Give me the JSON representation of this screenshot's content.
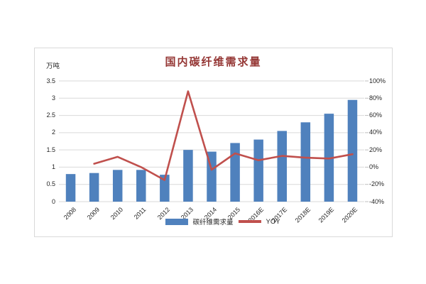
{
  "page": {
    "background": "#ffffff"
  },
  "chart_data": {
    "type": "bar",
    "combo_with_line": true,
    "title": "国内碳纤维需求量",
    "unit_label": "万吨",
    "categories": [
      "2008",
      "2009",
      "2010",
      "2011",
      "2012",
      "2013",
      "2014",
      "2015",
      "2016E",
      "2017E",
      "2018E",
      "2019E",
      "2020E"
    ],
    "series": [
      {
        "name": "碳纤维需求量",
        "kind": "bar",
        "axis": "left",
        "color": "#4f81bd",
        "values": [
          0.8,
          0.83,
          0.92,
          0.92,
          0.78,
          1.5,
          1.45,
          1.7,
          1.8,
          2.05,
          2.3,
          2.55,
          2.95
        ]
      },
      {
        "name": "YOY",
        "kind": "line",
        "axis": "right",
        "color": "#c0504d",
        "values": [
          null,
          4,
          12,
          0,
          -15,
          88,
          -3,
          16,
          8,
          13,
          11,
          10,
          15
        ]
      }
    ],
    "left_axis": {
      "min": 0,
      "max": 3.5,
      "step": 0.5,
      "tick_labels": [
        "3.5",
        "3",
        "2.5",
        "2",
        "1.5",
        "1",
        "0.5",
        "0"
      ]
    },
    "right_axis": {
      "min": -40,
      "max": 100,
      "step": 20,
      "tick_labels": [
        "100%",
        "80%",
        "60%",
        "40%",
        "20%",
        "0%",
        "-20%",
        "-40%"
      ]
    },
    "grid": true,
    "legend_position": "bottom-center",
    "colors": {
      "bar": "#4f81bd",
      "line": "#c0504d",
      "title": "#953735",
      "gridline": "#d9d9d9",
      "axis_text": "#262626",
      "panel_border": "#d9d9d9",
      "tick_mark": "#bfbfbf"
    }
  }
}
